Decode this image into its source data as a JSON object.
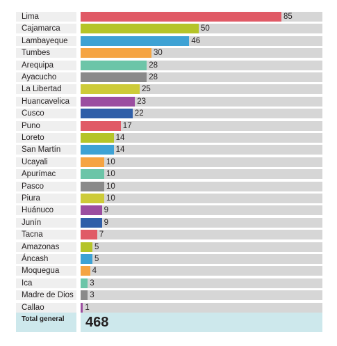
{
  "chart_data": {
    "type": "bar",
    "orientation": "horizontal",
    "categories": [
      "Lima",
      "Cajamarca",
      "Lambayeque",
      "Tumbes",
      "Arequipa",
      "Ayacucho",
      "La Libertad",
      "Huancavelica",
      "Cusco",
      "Puno",
      "Loreto",
      "San Martín",
      "Ucayali",
      "Apurímac",
      "Pasco",
      "Piura",
      "Huánuco",
      "Junín",
      "Tacna",
      "Amazonas",
      "Áncash",
      "Moquegua",
      "Ica",
      "Madre de Dios",
      "Callao"
    ],
    "values": [
      85,
      50,
      46,
      30,
      28,
      28,
      25,
      23,
      22,
      17,
      14,
      14,
      10,
      10,
      10,
      10,
      9,
      9,
      7,
      5,
      5,
      4,
      3,
      3,
      1
    ],
    "value_labels": [
      "85",
      "50",
      "46",
      "30",
      "28",
      "28",
      "25",
      "23",
      "22",
      "17",
      "14",
      "14",
      "10",
      "10",
      "10",
      "10",
      "9",
      "9",
      "7",
      "5",
      "5",
      "4",
      "3",
      "3",
      "1"
    ],
    "colors": [
      "#e05a66",
      "#b5c428",
      "#3ea2d4",
      "#f5a442",
      "#6cc5a8",
      "#8a8a8a",
      "#cdcb38",
      "#9b4ea0",
      "#2f5ea8",
      "#e05a66",
      "#b5c428",
      "#3ea2d4",
      "#f5a442",
      "#6cc5a8",
      "#8a8a8a",
      "#cdcb38",
      "#9b4ea0",
      "#2f5ea8",
      "#e05a66",
      "#b5c428",
      "#3ea2d4",
      "#f5a442",
      "#6cc5a8",
      "#8a8a8a",
      "#9b4ea0"
    ],
    "xlim": [
      0,
      100
    ],
    "grid": false,
    "legend": "none",
    "total": {
      "label": "Total general",
      "value": "468"
    }
  }
}
